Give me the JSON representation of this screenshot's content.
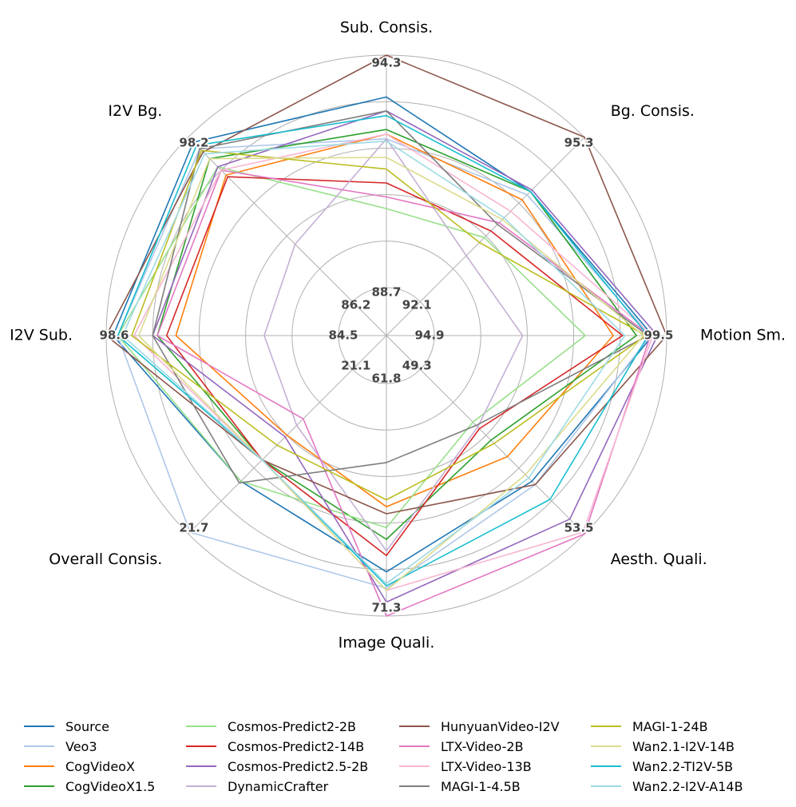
{
  "chart_data": {
    "type": "radar",
    "axes": [
      "Sub. Consis.",
      "Bg. Consis.",
      "Motion Sm.",
      "Aesth. Quali.",
      "Image Quali.",
      "Overall Consis.",
      "I2V Sub.",
      "I2V Bg."
    ],
    "axis_inner_labels": [
      "88.7",
      "92.1",
      "94.9",
      "49.3",
      "61.8",
      "21.1",
      "84.5",
      "86.2"
    ],
    "axis_max_labels": [
      "94.3",
      "95.3",
      "99.5",
      "53.5",
      "71.3",
      "21.7",
      "98.6",
      "98.2"
    ],
    "radial_range": [
      0,
      1
    ],
    "rings": 6,
    "series": [
      {
        "name": "Source",
        "color": "#1f77b4",
        "values": [
          0.82,
          0.67,
          0.94,
          0.68,
          0.81,
          0.68,
          0.97,
          0.97
        ]
      },
      {
        "name": "Veo3",
        "color": "#aec7e8",
        "values": [
          0.64,
          0.65,
          0.93,
          0.7,
          0.88,
          0.99,
          0.95,
          0.93
        ]
      },
      {
        "name": "CogVideoX",
        "color": "#ff7f0e",
        "values": [
          0.66,
          0.62,
          0.77,
          0.53,
          0.53,
          0.4,
          0.7,
          0.77
        ]
      },
      {
        "name": "CogVideoX1.5",
        "color": "#2ca02c",
        "values": [
          0.68,
          0.67,
          0.87,
          0.43,
          0.67,
          0.55,
          0.78,
          0.87
        ]
      },
      {
        "name": "Cosmos-Predict2-2B",
        "color": "#98df8a",
        "values": [
          0.34,
          0.39,
          0.65,
          0.32,
          0.62,
          0.68,
          0.95,
          0.82
        ]
      },
      {
        "name": "Cosmos-Predict2-14B",
        "color": "#d62728",
        "values": [
          0.45,
          0.43,
          0.81,
          0.36,
          0.74,
          0.55,
          0.74,
          0.76
        ]
      },
      {
        "name": "Cosmos-Predict2.5-2B",
        "color": "#9467bd",
        "values": [
          0.76,
          0.68,
          0.96,
          0.91,
          0.94,
          0.41,
          0.8,
          0.82
        ]
      },
      {
        "name": "DynamicCrafter",
        "color": "#c5b0d5",
        "values": [
          0.64,
          0.28,
          0.38,
          0.35,
          0.72,
          0.34,
          0.32,
          0.35
        ]
      },
      {
        "name": "HunyuanVideo-I2V",
        "color": "#8c564b",
        "values": [
          1.0,
          1.0,
          1.0,
          0.7,
          0.56,
          0.55,
          1.0,
          0.91
        ]
      },
      {
        "name": "LTX-Video-2B",
        "color": "#e377c2",
        "values": [
          0.39,
          0.48,
          0.93,
          1.0,
          1.0,
          0.3,
          0.78,
          0.8
        ]
      },
      {
        "name": "LTX-Video-13B",
        "color": "#f7b6d2",
        "values": [
          0.66,
          0.55,
          0.94,
          0.99,
          0.89,
          0.55,
          0.88,
          0.8
        ]
      },
      {
        "name": "MAGI-1-4.5B",
        "color": "#7f7f7f",
        "values": [
          0.76,
          0.47,
          0.92,
          0.34,
          0.34,
          0.69,
          0.8,
          0.93
        ]
      },
      {
        "name": "MAGI-1-24B",
        "color": "#bcbd22",
        "values": [
          0.51,
          0.36,
          0.91,
          0.45,
          0.5,
          0.46,
          0.89,
          0.92
        ]
      },
      {
        "name": "Wan2.2-TI2V-5B",
        "color": "#17becf",
        "values": [
          0.74,
          0.67,
          0.92,
          0.79,
          0.87,
          0.55,
          0.95,
          0.95
        ]
      },
      {
        "name": "Wan2.1-I2V-14B",
        "color": "#dbdb8d",
        "values": [
          0.56,
          0.5,
          0.9,
          0.64,
          0.89,
          0.55,
          0.86,
          0.87
        ]
      },
      {
        "name": "Wan2.2-I2V-A14B",
        "color": "#9edae5",
        "values": [
          0.63,
          0.51,
          0.82,
          0.66,
          0.86,
          0.55,
          0.93,
          0.9
        ]
      }
    ]
  },
  "legend": [
    {
      "name": "Source",
      "color": "#1f77b4"
    },
    {
      "name": "Veo3",
      "color": "#aec7e8"
    },
    {
      "name": "CogVideoX",
      "color": "#ff7f0e"
    },
    {
      "name": "CogVideoX1.5",
      "color": "#2ca02c"
    },
    {
      "name": "Cosmos-Predict2-2B",
      "color": "#98df8a"
    },
    {
      "name": "Cosmos-Predict2-14B",
      "color": "#d62728"
    },
    {
      "name": "Cosmos-Predict2.5-2B",
      "color": "#9467bd"
    },
    {
      "name": "DynamicCrafter",
      "color": "#c5b0d5"
    },
    {
      "name": "HunyuanVideo-I2V",
      "color": "#8c564b"
    },
    {
      "name": "LTX-Video-2B",
      "color": "#e377c2"
    },
    {
      "name": "LTX-Video-13B",
      "color": "#f7b6d2"
    },
    {
      "name": "MAGI-1-4.5B",
      "color": "#7f7f7f"
    },
    {
      "name": "MAGI-1-24B",
      "color": "#bcbd22"
    },
    {
      "name": "Wan2.1-I2V-14B",
      "color": "#dbdb8d"
    },
    {
      "name": "Wan2.2-TI2V-5B",
      "color": "#17becf"
    },
    {
      "name": "Wan2.2-I2V-A14B",
      "color": "#9edae5"
    }
  ]
}
